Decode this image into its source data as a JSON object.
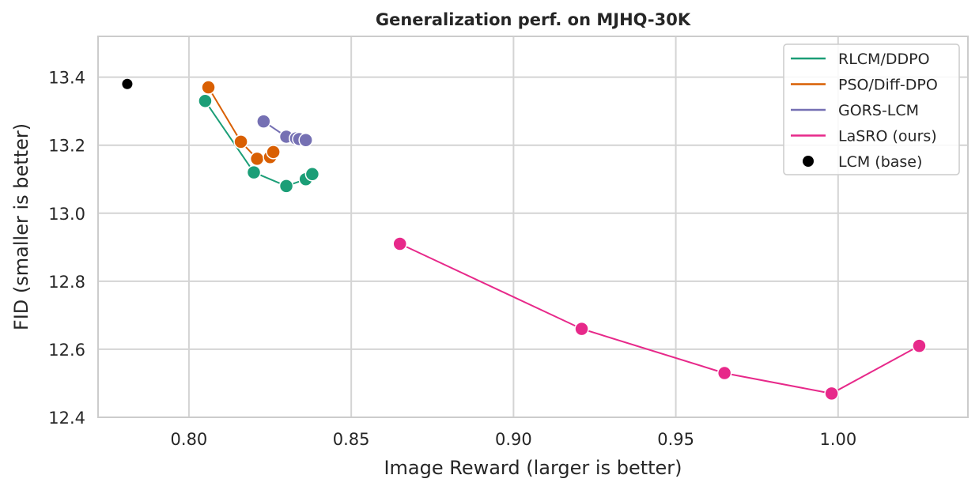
{
  "chart_data": {
    "type": "line",
    "title": "Generalization perf. on MJHQ-30K",
    "xlabel": "Image Reward (larger is better)",
    "ylabel": "FID (smaller is better)",
    "xlim": [
      0.772,
      1.04
    ],
    "ylim": [
      12.4,
      13.52
    ],
    "xticks": [
      "0.80",
      "0.85",
      "0.90",
      "0.95",
      "1.00"
    ],
    "xtick_values": [
      0.8,
      0.85,
      0.9,
      0.95,
      1.0
    ],
    "yticks": [
      "12.4",
      "12.6",
      "12.8",
      "13.0",
      "13.2",
      "13.4"
    ],
    "ytick_values": [
      12.4,
      12.6,
      12.8,
      13.0,
      13.2,
      13.4
    ],
    "grid": true,
    "legend_position": "top-right",
    "series": [
      {
        "name": "RLCM/DDPO",
        "color": "#1b9e77",
        "x": [
          0.805,
          0.82,
          0.83,
          0.836,
          0.838
        ],
        "y": [
          13.33,
          13.12,
          13.08,
          13.1,
          13.115
        ]
      },
      {
        "name": "PSO/Diff-DPO",
        "color": "#d95f02",
        "x": [
          0.806,
          0.816,
          0.821,
          0.825,
          0.826
        ],
        "y": [
          13.37,
          13.21,
          13.16,
          13.165,
          13.18
        ]
      },
      {
        "name": "GORS-LCM",
        "color": "#7570b3",
        "x": [
          0.823,
          0.83,
          0.833,
          0.834,
          0.836
        ],
        "y": [
          13.27,
          13.225,
          13.22,
          13.218,
          13.215
        ]
      },
      {
        "name": "LaSRO (ours)",
        "color": "#e7298a",
        "x": [
          0.865,
          0.921,
          0.965,
          0.998,
          1.025
        ],
        "y": [
          12.91,
          12.66,
          12.53,
          12.47,
          12.61
        ]
      }
    ],
    "points": [
      {
        "name": "LCM (base)",
        "color": "#000000",
        "x": 0.781,
        "y": 13.38
      }
    ]
  }
}
